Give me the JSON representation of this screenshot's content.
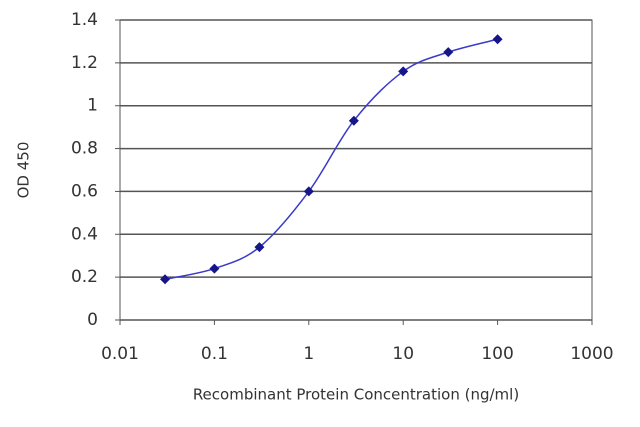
{
  "chart_data": {
    "type": "line",
    "x_label": "Recombinant Protein Concentration (ng/ml)",
    "y_label": "OD 450",
    "x": [
      0.03,
      0.1,
      0.3,
      1,
      3,
      10,
      30,
      100
    ],
    "series": [
      {
        "color": "#3a3ac8",
        "values": [
          0.19,
          0.24,
          0.34,
          0.6,
          0.93,
          1.16,
          1.25,
          1.31
        ]
      }
    ],
    "x_scale": "log",
    "xlim": [
      0.01,
      1000
    ],
    "xticks": [
      0.01,
      0.1,
      1,
      10,
      100,
      1000
    ],
    "ylim": [
      0,
      1.4
    ],
    "yticks": [
      0,
      0.2,
      0.4,
      0.6,
      0.8,
      1,
      1.2,
      1.4
    ],
    "grid": true,
    "marker_color": "#16168a"
  }
}
